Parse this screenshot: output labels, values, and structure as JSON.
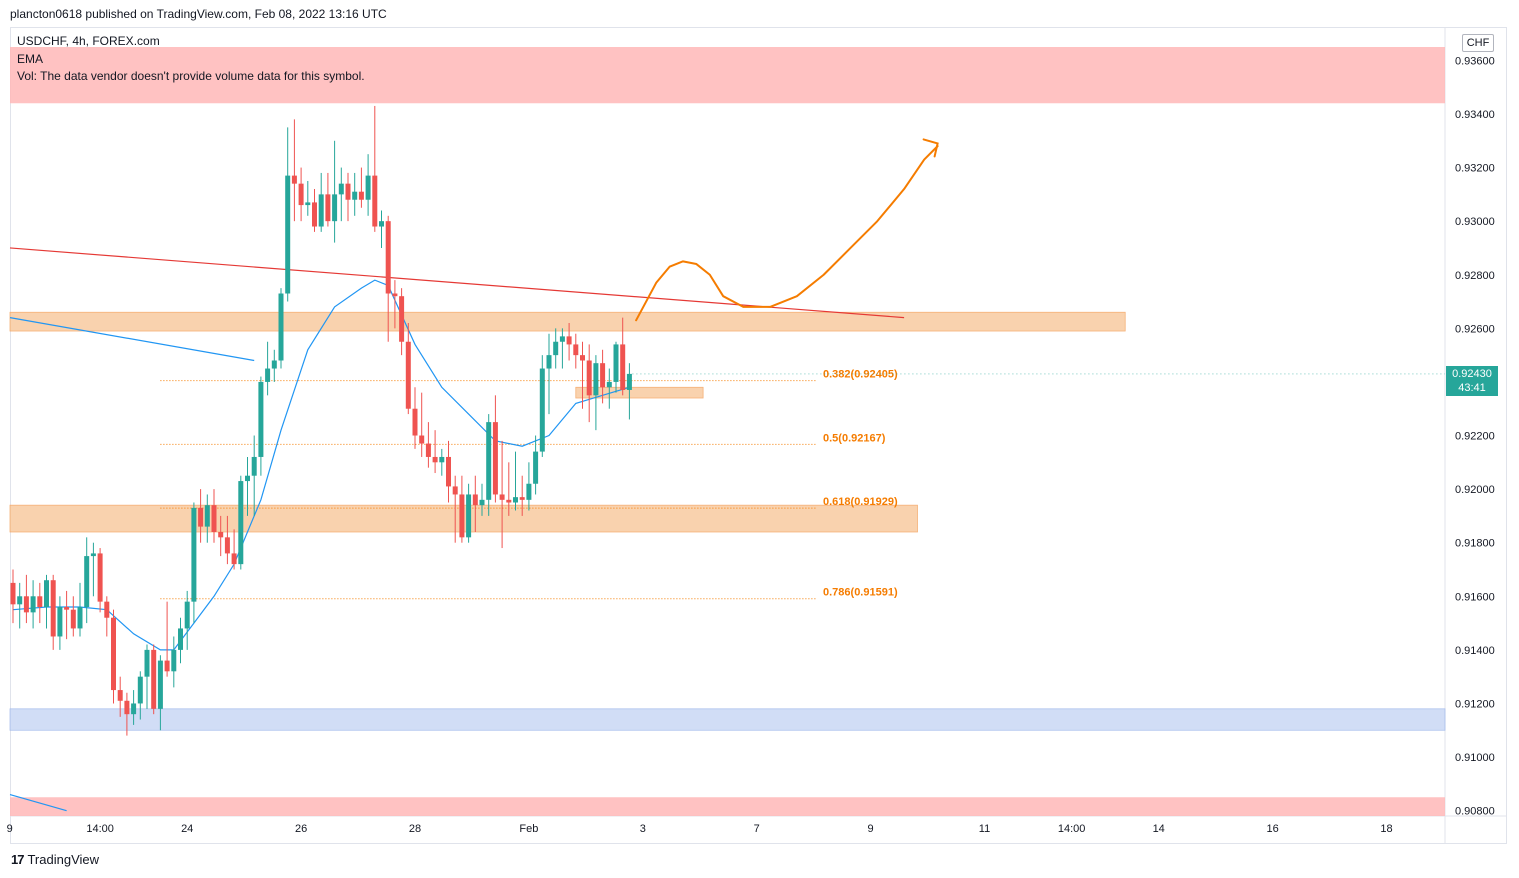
{
  "header": {
    "publisher": "plancton0618 published on TradingView.com, Feb 08, 2022 13:16 UTC"
  },
  "legend": {
    "symbol": "USDCHF, 4h, FOREX.com",
    "indicator": "EMA",
    "volume_note": "Vol: The data vendor doesn't provide volume data for this symbol."
  },
  "price_axis": {
    "currency": "CHF",
    "current_price": "0.92430",
    "countdown": "43:41"
  },
  "footer": {
    "brand": "TradingView"
  },
  "colors": {
    "up": "#26a69a",
    "down": "#ef5350",
    "ema": "#2196f3",
    "zone_orange": "#f9cba0",
    "zone_blue": "#c9d8f5",
    "zone_red": "#ffb7b7",
    "trendline": "#e53935",
    "fib": "#f57c00",
    "projection": "#f57c00"
  },
  "chart_data": {
    "type": "candlestick",
    "title": "USDCHF, 4h, FOREX.com",
    "ylim": [
      0.9078,
      0.9365
    ],
    "y_ticks": [
      "0.93600",
      "0.93400",
      "0.93200",
      "0.93000",
      "0.92800",
      "0.92600",
      "0.92400",
      "0.92200",
      "0.92000",
      "0.91800",
      "0.91600",
      "0.91400",
      "0.91200",
      "0.91000",
      "0.90800"
    ],
    "x_ticks": [
      {
        "label": "9",
        "bar": -0.5
      },
      {
        "label": "14:00",
        "bar": 13
      },
      {
        "label": "24",
        "bar": 26
      },
      {
        "label": "26",
        "bar": 43
      },
      {
        "label": "28",
        "bar": 60
      },
      {
        "label": "Feb",
        "bar": 77
      },
      {
        "label": "3",
        "bar": 94
      },
      {
        "label": "7",
        "bar": 111
      },
      {
        "label": "9",
        "bar": 128
      },
      {
        "label": "11",
        "bar": 145
      },
      {
        "label": "14:00",
        "bar": 158
      },
      {
        "label": "14",
        "bar": 171
      },
      {
        "label": "16",
        "bar": 188
      },
      {
        "label": "18",
        "bar": 205
      }
    ],
    "candles_ohlc": [
      [
        0.9165,
        0.917,
        0.915,
        0.9157
      ],
      [
        0.9157,
        0.9165,
        0.9148,
        0.916
      ],
      [
        0.916,
        0.9168,
        0.915,
        0.9154
      ],
      [
        0.9154,
        0.9166,
        0.9148,
        0.916
      ],
      [
        0.916,
        0.9165,
        0.915,
        0.9156
      ],
      [
        0.9156,
        0.9168,
        0.9148,
        0.9166
      ],
      [
        0.9166,
        0.9168,
        0.914,
        0.9145
      ],
      [
        0.9145,
        0.916,
        0.914,
        0.9156
      ],
      [
        0.9156,
        0.9162,
        0.9144,
        0.9155
      ],
      [
        0.9155,
        0.916,
        0.9145,
        0.9148
      ],
      [
        0.9148,
        0.9165,
        0.9145,
        0.9156
      ],
      [
        0.9156,
        0.9182,
        0.915,
        0.9175
      ],
      [
        0.9175,
        0.918,
        0.916,
        0.9176
      ],
      [
        0.9176,
        0.9178,
        0.9154,
        0.9158
      ],
      [
        0.9158,
        0.916,
        0.9145,
        0.9152
      ],
      [
        0.9152,
        0.9155,
        0.912,
        0.9125
      ],
      [
        0.9125,
        0.913,
        0.9115,
        0.9121
      ],
      [
        0.9121,
        0.9124,
        0.9108,
        0.9116
      ],
      [
        0.9116,
        0.9125,
        0.9112,
        0.912
      ],
      [
        0.912,
        0.9132,
        0.9114,
        0.913
      ],
      [
        0.913,
        0.9142,
        0.9118,
        0.914
      ],
      [
        0.914,
        0.9142,
        0.9116,
        0.9118
      ],
      [
        0.9118,
        0.9138,
        0.911,
        0.9136
      ],
      [
        0.9136,
        0.9158,
        0.913,
        0.9132
      ],
      [
        0.9132,
        0.9145,
        0.9126,
        0.914
      ],
      [
        0.914,
        0.9152,
        0.9135,
        0.9148
      ],
      [
        0.9148,
        0.9162,
        0.914,
        0.9158
      ],
      [
        0.9158,
        0.9195,
        0.915,
        0.9193
      ],
      [
        0.9193,
        0.92,
        0.918,
        0.9186
      ],
      [
        0.9186,
        0.9198,
        0.918,
        0.9194
      ],
      [
        0.9194,
        0.92,
        0.918,
        0.9184
      ],
      [
        0.9184,
        0.919,
        0.9175,
        0.9182
      ],
      [
        0.9182,
        0.919,
        0.9172,
        0.9176
      ],
      [
        0.9176,
        0.9185,
        0.917,
        0.9172
      ],
      [
        0.9172,
        0.9205,
        0.917,
        0.9203
      ],
      [
        0.9203,
        0.9212,
        0.919,
        0.9205
      ],
      [
        0.9205,
        0.922,
        0.919,
        0.9212
      ],
      [
        0.9212,
        0.9242,
        0.9205,
        0.924
      ],
      [
        0.924,
        0.9255,
        0.9235,
        0.9245
      ],
      [
        0.9245,
        0.9252,
        0.924,
        0.9248
      ],
      [
        0.9248,
        0.9275,
        0.9245,
        0.9273
      ],
      [
        0.9273,
        0.9335,
        0.927,
        0.9317
      ],
      [
        0.9317,
        0.9338,
        0.93,
        0.9314
      ],
      [
        0.9314,
        0.932,
        0.93,
        0.9306
      ],
      [
        0.9306,
        0.9315,
        0.9302,
        0.9307
      ],
      [
        0.9307,
        0.9312,
        0.9296,
        0.9298
      ],
      [
        0.9298,
        0.9318,
        0.9296,
        0.931
      ],
      [
        0.931,
        0.9318,
        0.9298,
        0.93
      ],
      [
        0.93,
        0.933,
        0.9292,
        0.931
      ],
      [
        0.931,
        0.932,
        0.93,
        0.9314
      ],
      [
        0.9314,
        0.9318,
        0.93,
        0.9308
      ],
      [
        0.9308,
        0.9318,
        0.9302,
        0.9311
      ],
      [
        0.9311,
        0.932,
        0.9305,
        0.9308
      ],
      [
        0.9308,
        0.9325,
        0.9302,
        0.9317
      ],
      [
        0.9317,
        0.9343,
        0.9296,
        0.9298
      ],
      [
        0.9298,
        0.9304,
        0.929,
        0.93
      ],
      [
        0.93,
        0.9302,
        0.9255,
        0.9273
      ],
      [
        0.9273,
        0.9278,
        0.926,
        0.9272
      ],
      [
        0.9272,
        0.9275,
        0.925,
        0.9255
      ],
      [
        0.9255,
        0.9262,
        0.9228,
        0.923
      ],
      [
        0.923,
        0.9238,
        0.9215,
        0.922
      ],
      [
        0.922,
        0.9236,
        0.9212,
        0.9217
      ],
      [
        0.9217,
        0.9225,
        0.9208,
        0.9212
      ],
      [
        0.9212,
        0.9222,
        0.9206,
        0.921
      ],
      [
        0.921,
        0.9215,
        0.9205,
        0.9212
      ],
      [
        0.9212,
        0.9218,
        0.9195,
        0.9201
      ],
      [
        0.9201,
        0.9205,
        0.918,
        0.9198
      ],
      [
        0.9198,
        0.9205,
        0.918,
        0.9182
      ],
      [
        0.9182,
        0.9202,
        0.918,
        0.9198
      ],
      [
        0.9198,
        0.9205,
        0.9184,
        0.9194
      ],
      [
        0.9194,
        0.9202,
        0.919,
        0.9196
      ],
      [
        0.9196,
        0.9228,
        0.919,
        0.9225
      ],
      [
        0.9225,
        0.9235,
        0.9195,
        0.9198
      ],
      [
        0.9198,
        0.9218,
        0.9178,
        0.9196
      ],
      [
        0.9196,
        0.921,
        0.919,
        0.9195
      ],
      [
        0.9195,
        0.9214,
        0.9192,
        0.9197
      ],
      [
        0.9197,
        0.9205,
        0.919,
        0.9196
      ],
      [
        0.9196,
        0.921,
        0.9192,
        0.9202
      ],
      [
        0.9202,
        0.922,
        0.9198,
        0.9214
      ],
      [
        0.9214,
        0.925,
        0.9212,
        0.9245
      ],
      [
        0.9245,
        0.9258,
        0.9228,
        0.925
      ],
      [
        0.925,
        0.926,
        0.9245,
        0.9255
      ],
      [
        0.9255,
        0.926,
        0.9245,
        0.9257
      ],
      [
        0.9257,
        0.9262,
        0.9248,
        0.9254
      ],
      [
        0.9254,
        0.9258,
        0.9245,
        0.925
      ],
      [
        0.925,
        0.9255,
        0.923,
        0.9248
      ],
      [
        0.9248,
        0.9254,
        0.9225,
        0.9235
      ],
      [
        0.9235,
        0.925,
        0.9222,
        0.9247
      ],
      [
        0.9247,
        0.9252,
        0.9232,
        0.9238
      ],
      [
        0.9238,
        0.9245,
        0.923,
        0.924
      ],
      [
        0.924,
        0.9255,
        0.9236,
        0.9254
      ],
      [
        0.9254,
        0.9264,
        0.9235,
        0.9237
      ],
      [
        0.9237,
        0.9247,
        0.9226,
        0.9243
      ]
    ],
    "ema_series": [
      [
        0,
        0.9155
      ],
      [
        5,
        0.9156
      ],
      [
        10,
        0.9156
      ],
      [
        14,
        0.9155
      ],
      [
        18,
        0.9146
      ],
      [
        22,
        0.914
      ],
      [
        24,
        0.914
      ],
      [
        27,
        0.915
      ],
      [
        30,
        0.916
      ],
      [
        33,
        0.9172
      ],
      [
        37,
        0.9196
      ],
      [
        40,
        0.9222
      ],
      [
        44,
        0.9252
      ],
      [
        48,
        0.9268
      ],
      [
        52,
        0.9275
      ],
      [
        54,
        0.9278
      ],
      [
        56,
        0.9276
      ],
      [
        60,
        0.9254
      ],
      [
        64,
        0.9238
      ],
      [
        68,
        0.9228
      ],
      [
        72,
        0.9218
      ],
      [
        76,
        0.9216
      ],
      [
        80,
        0.922
      ],
      [
        84,
        0.9232
      ],
      [
        88,
        0.9235
      ],
      [
        92,
        0.9238
      ]
    ],
    "ema_prior_segment": [
      [
        -2,
        0.9264
      ],
      [
        36,
        0.9248
      ]
    ],
    "ema_start_segment": [
      [
        -2,
        0.9086
      ],
      [
        8,
        0.908
      ]
    ],
    "trendline": [
      [
        -2,
        0.929
      ],
      [
        133,
        0.9264
      ]
    ],
    "zones": [
      {
        "kind": "orange",
        "x0": -2,
        "x1": 166,
        "y0": 0.9259,
        "y1": 0.9266
      },
      {
        "kind": "orange",
        "x0": -2,
        "x1": 135,
        "y0": 0.9184,
        "y1": 0.9194
      },
      {
        "kind": "orange",
        "x0": 84,
        "x1": 103,
        "y0": 0.9234,
        "y1": 0.9238
      },
      {
        "kind": "blue",
        "x0": -2,
        "x1": 225,
        "y0": 0.911,
        "y1": 0.9118
      },
      {
        "kind": "red",
        "x0": -2,
        "x1": 225,
        "y0": 0.9344,
        "y1": 0.9365
      },
      {
        "kind": "red",
        "x0": -2,
        "x1": 225,
        "y0": 0.9078,
        "y1": 0.9085
      }
    ],
    "fib_levels": [
      {
        "label": "0.382(0.92405)",
        "value": 0.92405
      },
      {
        "label": "0.5(0.92167)",
        "value": 0.92167
      },
      {
        "label": "0.618(0.91929)",
        "value": 0.91929
      },
      {
        "label": "0.786(0.91591)",
        "value": 0.91591
      }
    ],
    "fib_x_range": [
      22,
      120
    ],
    "projection_path": [
      [
        93,
        0.9263
      ],
      [
        96,
        0.9277
      ],
      [
        98,
        0.9283
      ],
      [
        100,
        0.9285
      ],
      [
        102,
        0.9284
      ],
      [
        104,
        0.928
      ],
      [
        106,
        0.9272
      ],
      [
        109,
        0.9268
      ],
      [
        113,
        0.9268
      ],
      [
        117,
        0.9272
      ],
      [
        121,
        0.928
      ],
      [
        125,
        0.929
      ],
      [
        129,
        0.93
      ],
      [
        133,
        0.9312
      ],
      [
        136,
        0.9323
      ],
      [
        138,
        0.9328
      ]
    ],
    "projection_arrow_tip": [
      138,
      0.9329
    ]
  }
}
